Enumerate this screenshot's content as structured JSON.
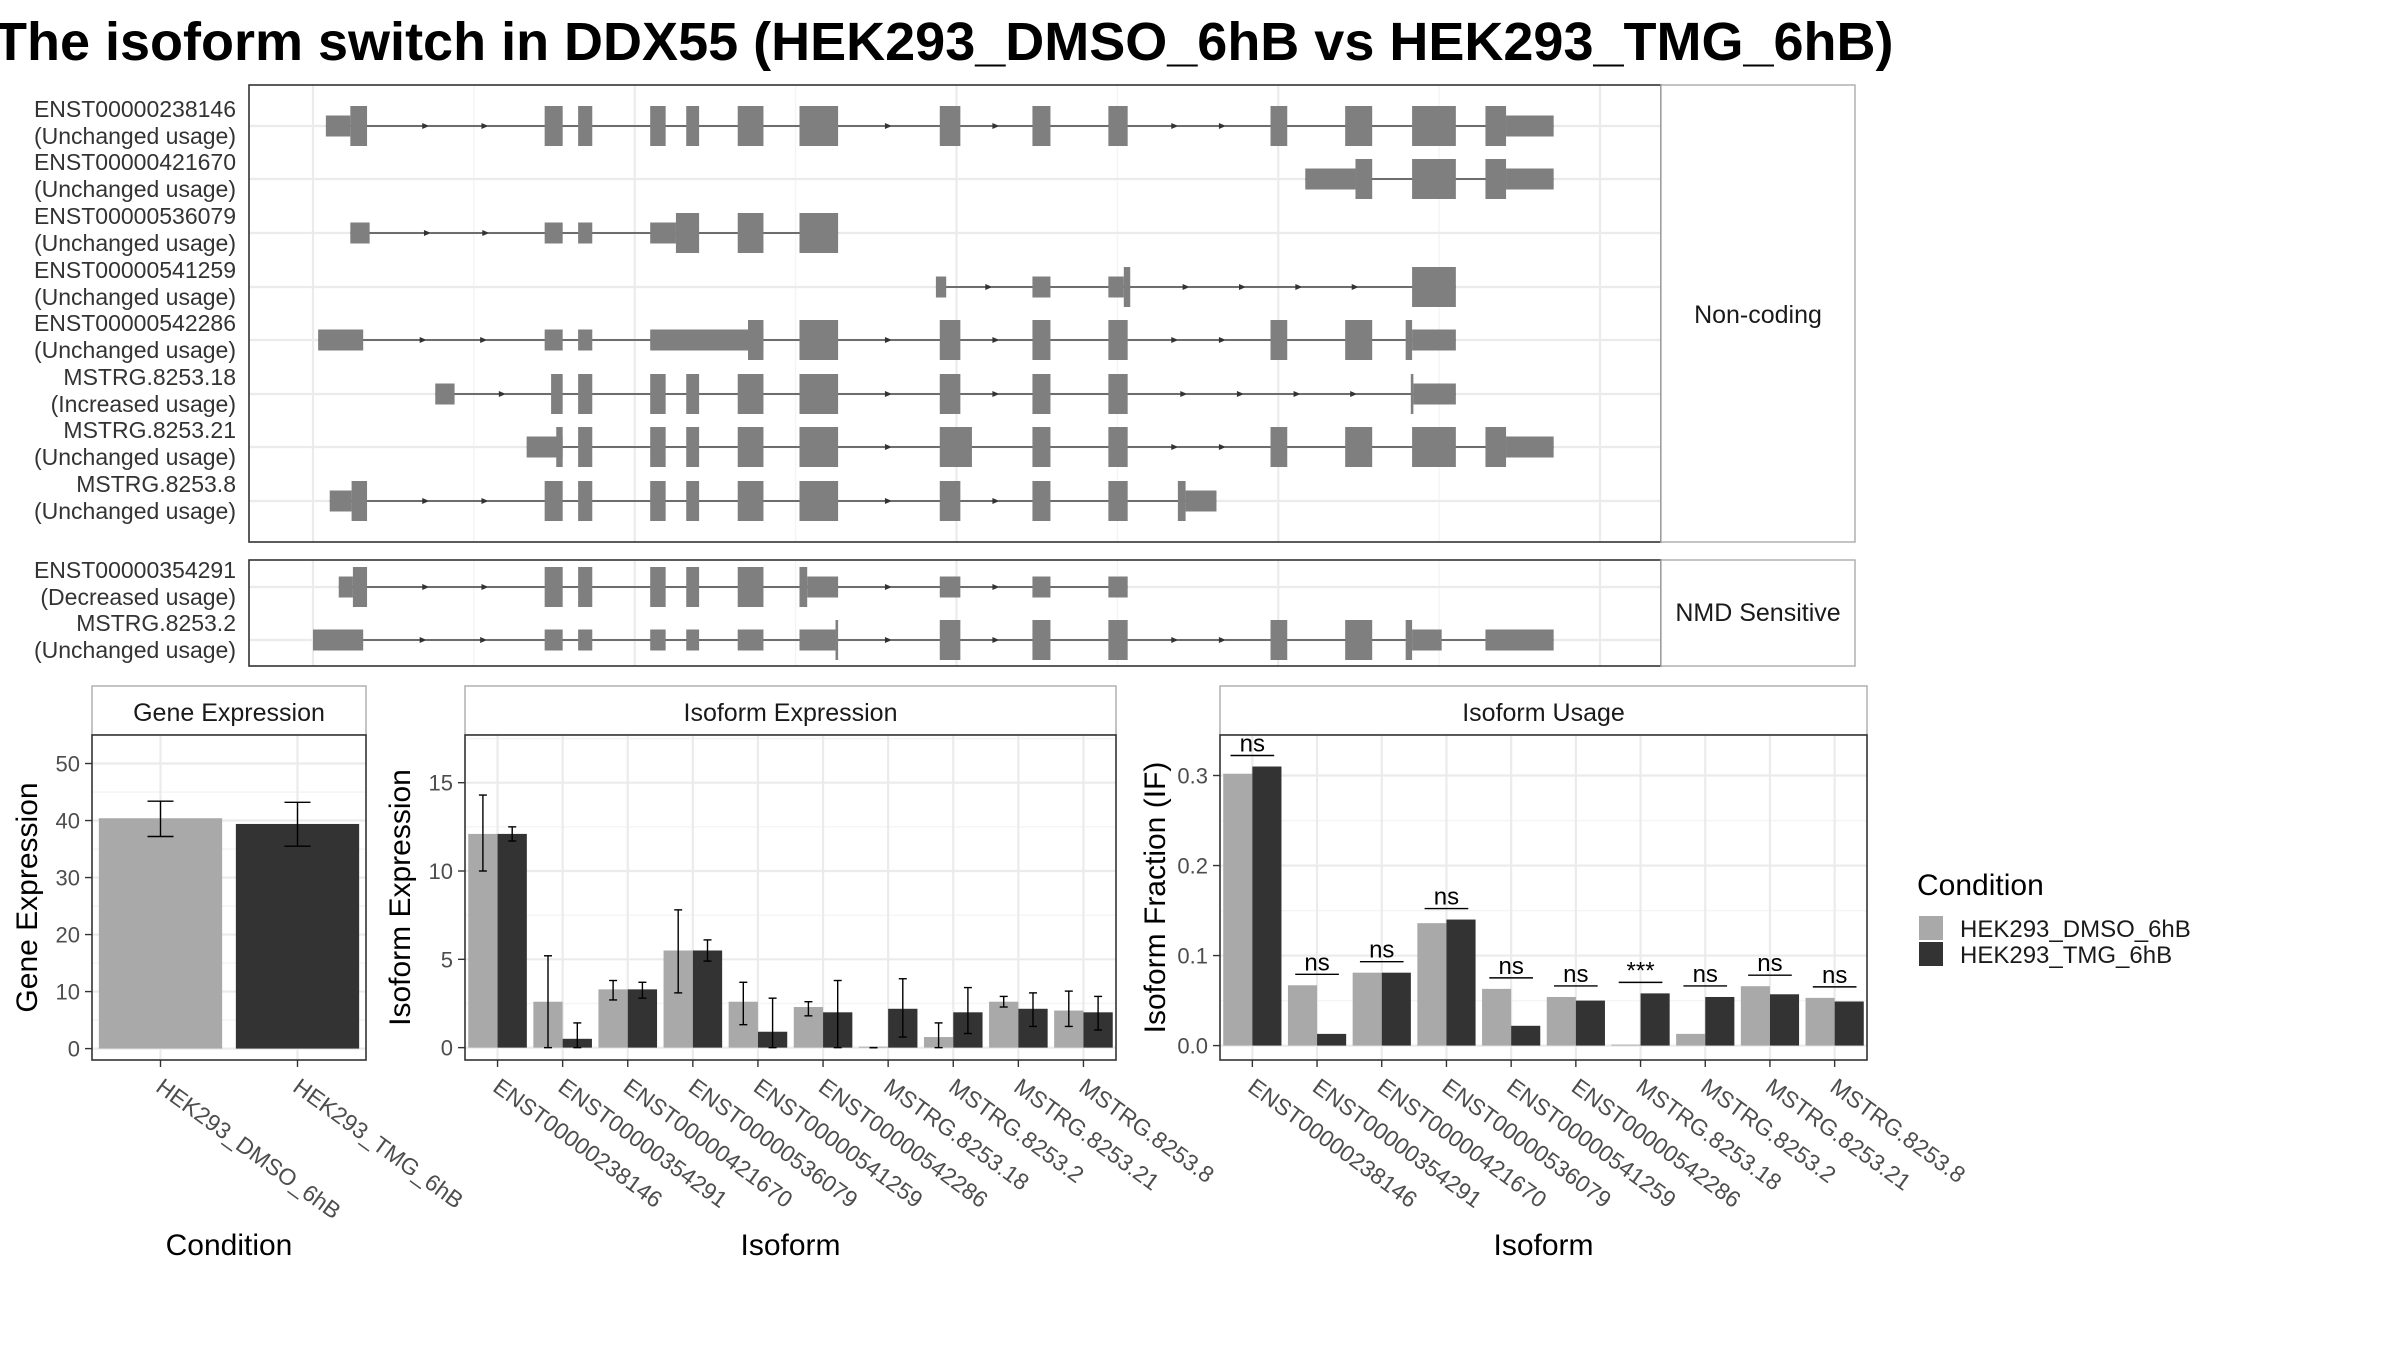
{
  "title": "The isoform switch in DDX55 (HEK293_DMSO_6hB vs HEK293_TMG_6hB)",
  "colors": {
    "exon": "#7f7f7f",
    "dmso": "#a9a9a9",
    "tmg": "#333333"
  },
  "structure": {
    "genomic_range": [
      0,
      100
    ],
    "facets": [
      {
        "label": "Non-coding",
        "transcripts": [
          {
            "id": "ENST00000238146",
            "usage": "(Unchanged usage)",
            "exons": [
              [
                1.0,
                2.9,
                "s"
              ],
              [
                2.9,
                4.2,
                "t"
              ],
              [
                18.0,
                19.4,
                "t"
              ],
              [
                20.6,
                21.7,
                "t"
              ],
              [
                26.2,
                27.4,
                "t"
              ],
              [
                29.0,
                30.0,
                "t"
              ],
              [
                33.0,
                35.0,
                "t"
              ],
              [
                37.8,
                40.8,
                "t"
              ],
              [
                48.7,
                50.3,
                "t"
              ],
              [
                55.9,
                57.3,
                "t"
              ],
              [
                61.8,
                63.3,
                "t"
              ],
              [
                74.4,
                75.7,
                "t"
              ],
              [
                80.2,
                82.3,
                "t"
              ],
              [
                85.4,
                88.8,
                "t"
              ],
              [
                91.1,
                92.7,
                "t"
              ],
              [
                92.7,
                96.4,
                "s"
              ]
            ]
          },
          {
            "id": "ENST00000421670",
            "usage": "(Unchanged usage)",
            "exons": [
              [
                77.1,
                81.0,
                "s"
              ],
              [
                81.0,
                82.3,
                "t"
              ],
              [
                85.4,
                88.8,
                "t"
              ],
              [
                91.1,
                92.7,
                "t"
              ],
              [
                92.7,
                96.4,
                "s"
              ]
            ]
          },
          {
            "id": "ENST00000536079",
            "usage": "(Unchanged usage)",
            "exons": [
              [
                2.9,
                4.4,
                "s"
              ],
              [
                18.0,
                19.4,
                "s"
              ],
              [
                20.6,
                21.7,
                "s"
              ],
              [
                26.2,
                28.2,
                "s"
              ],
              [
                28.2,
                30.0,
                "t"
              ],
              [
                33.0,
                35.0,
                "t"
              ],
              [
                37.8,
                40.8,
                "t"
              ]
            ]
          },
          {
            "id": "ENST00000541259",
            "usage": "(Unchanged usage)",
            "exons": [
              [
                48.4,
                49.2,
                "s"
              ],
              [
                55.9,
                57.3,
                "s"
              ],
              [
                61.8,
                63.0,
                "s"
              ],
              [
                63.0,
                63.5,
                "t"
              ],
              [
                85.4,
                88.8,
                "t"
              ]
            ]
          },
          {
            "id": "ENST00000542286",
            "usage": "(Unchanged usage)",
            "exons": [
              [
                0.4,
                3.9,
                "s"
              ],
              [
                18.0,
                19.4,
                "s"
              ],
              [
                20.6,
                21.7,
                "s"
              ],
              [
                26.2,
                35.0,
                "s"
              ],
              [
                33.8,
                35.0,
                "t"
              ],
              [
                37.8,
                40.8,
                "t"
              ],
              [
                48.7,
                50.3,
                "t"
              ],
              [
                55.9,
                57.3,
                "t"
              ],
              [
                61.8,
                63.3,
                "t"
              ],
              [
                74.4,
                75.7,
                "t"
              ],
              [
                80.2,
                82.3,
                "t"
              ],
              [
                84.9,
                85.4,
                "t"
              ],
              [
                85.4,
                88.8,
                "s"
              ]
            ]
          },
          {
            "id": "MSTRG.8253.18",
            "usage": "(Increased usage)",
            "exons": [
              [
                9.5,
                11.0,
                "s"
              ],
              [
                18.5,
                19.4,
                "t"
              ],
              [
                20.6,
                21.7,
                "t"
              ],
              [
                26.2,
                27.4,
                "t"
              ],
              [
                29.0,
                30.0,
                "t"
              ],
              [
                33.0,
                35.0,
                "t"
              ],
              [
                37.8,
                40.8,
                "t"
              ],
              [
                48.7,
                50.3,
                "t"
              ],
              [
                55.9,
                57.3,
                "t"
              ],
              [
                61.8,
                63.3,
                "t"
              ],
              [
                85.3,
                85.5,
                "t"
              ],
              [
                85.5,
                88.8,
                "s"
              ]
            ]
          },
          {
            "id": "MSTRG.8253.21",
            "usage": "(Unchanged usage)",
            "exons": [
              [
                16.6,
                19.4,
                "s"
              ],
              [
                18.9,
                19.4,
                "t"
              ],
              [
                20.6,
                21.7,
                "t"
              ],
              [
                26.2,
                27.4,
                "t"
              ],
              [
                29.0,
                30.0,
                "t"
              ],
              [
                33.0,
                35.0,
                "t"
              ],
              [
                37.8,
                40.8,
                "t"
              ],
              [
                48.7,
                51.2,
                "t"
              ],
              [
                55.9,
                57.3,
                "t"
              ],
              [
                61.8,
                63.3,
                "t"
              ],
              [
                74.4,
                75.7,
                "t"
              ],
              [
                80.2,
                82.3,
                "t"
              ],
              [
                85.4,
                88.8,
                "t"
              ],
              [
                91.1,
                92.7,
                "t"
              ],
              [
                92.7,
                96.4,
                "s"
              ]
            ]
          },
          {
            "id": "MSTRG.8253.8",
            "usage": "(Unchanged usage)",
            "exons": [
              [
                1.3,
                3.0,
                "s"
              ],
              [
                3.0,
                4.2,
                "t"
              ],
              [
                18.0,
                19.4,
                "t"
              ],
              [
                20.6,
                21.7,
                "t"
              ],
              [
                26.2,
                27.4,
                "t"
              ],
              [
                29.0,
                30.0,
                "t"
              ],
              [
                33.0,
                35.0,
                "t"
              ],
              [
                37.8,
                40.8,
                "t"
              ],
              [
                48.7,
                50.3,
                "t"
              ],
              [
                55.9,
                57.3,
                "t"
              ],
              [
                61.8,
                63.3,
                "t"
              ],
              [
                67.2,
                67.8,
                "t"
              ],
              [
                67.8,
                70.2,
                "s"
              ]
            ]
          }
        ]
      },
      {
        "label": "NMD Sensitive",
        "transcripts": [
          {
            "id": "ENST00000354291",
            "usage": "(Decreased usage)",
            "exons": [
              [
                2.0,
                3.1,
                "s"
              ],
              [
                3.1,
                4.2,
                "t"
              ],
              [
                18.0,
                19.4,
                "t"
              ],
              [
                20.6,
                21.7,
                "t"
              ],
              [
                26.2,
                27.4,
                "t"
              ],
              [
                29.0,
                30.0,
                "t"
              ],
              [
                33.0,
                35.0,
                "t"
              ],
              [
                37.8,
                38.4,
                "t"
              ],
              [
                38.4,
                40.8,
                "s"
              ],
              [
                48.7,
                50.3,
                "s"
              ],
              [
                55.9,
                57.3,
                "s"
              ],
              [
                61.8,
                63.3,
                "s"
              ]
            ]
          },
          {
            "id": "MSTRG.8253.2",
            "usage": "(Unchanged usage)",
            "exons": [
              [
                0.0,
                3.9,
                "s"
              ],
              [
                18.0,
                19.4,
                "s"
              ],
              [
                20.6,
                21.7,
                "s"
              ],
              [
                26.2,
                27.4,
                "s"
              ],
              [
                29.0,
                30.0,
                "s"
              ],
              [
                33.0,
                35.0,
                "s"
              ],
              [
                37.8,
                40.6,
                "s"
              ],
              [
                40.6,
                40.8,
                "t"
              ],
              [
                48.7,
                50.3,
                "t"
              ],
              [
                55.9,
                57.3,
                "t"
              ],
              [
                61.8,
                63.3,
                "t"
              ],
              [
                74.4,
                75.7,
                "t"
              ],
              [
                80.2,
                82.3,
                "t"
              ],
              [
                84.9,
                85.4,
                "t"
              ],
              [
                85.4,
                87.7,
                "s"
              ],
              [
                91.1,
                96.4,
                "s"
              ]
            ]
          }
        ]
      }
    ]
  },
  "chart_data": [
    {
      "type": "bar",
      "title": "Gene Expression",
      "xlabel": "Condition",
      "ylabel": "Gene Expression",
      "ylim": [
        -2,
        55
      ],
      "yticks": [
        0,
        10,
        20,
        30,
        40,
        50
      ],
      "categories": [
        "HEK293_DMSO_6hB",
        "HEK293_TMG_6hB"
      ],
      "values": [
        40.4,
        39.4
      ],
      "errors": [
        [
          37.2,
          43.4
        ],
        [
          35.5,
          43.2
        ]
      ]
    },
    {
      "type": "bar",
      "title": "Isoform Expression",
      "xlabel": "Isoform",
      "ylabel": "Isoform Expression",
      "ylim": [
        -0.7,
        17.7
      ],
      "yticks": [
        0,
        5,
        10,
        15
      ],
      "categories": [
        "ENST00000238146",
        "ENST00000354291",
        "ENST00000421670",
        "ENST00000536079",
        "ENST00000541259",
        "ENST00000542286",
        "MSTRG.8253.18",
        "MSTRG.8253.2",
        "MSTRG.8253.21",
        "MSTRG.8253.8"
      ],
      "series": [
        {
          "name": "HEK293_DMSO_6hB",
          "values": [
            12.1,
            2.6,
            3.3,
            5.5,
            2.6,
            2.3,
            0.0,
            0.6,
            2.6,
            2.1
          ],
          "errors": [
            [
              10.0,
              14.3
            ],
            [
              0.0,
              5.2
            ],
            [
              2.7,
              3.8
            ],
            [
              3.1,
              7.8
            ],
            [
              1.3,
              3.7
            ],
            [
              1.8,
              2.6
            ],
            [
              0.0,
              0.0
            ],
            [
              0.0,
              1.4
            ],
            [
              2.3,
              2.9
            ],
            [
              1.2,
              3.2
            ]
          ]
        },
        {
          "name": "HEK293_TMG_6hB",
          "values": [
            12.1,
            0.5,
            3.3,
            5.5,
            0.9,
            2.0,
            2.2,
            2.0,
            2.2,
            2.0
          ],
          "errors": [
            [
              11.7,
              12.5
            ],
            [
              0.0,
              1.4
            ],
            [
              2.8,
              3.7
            ],
            [
              4.9,
              6.1
            ],
            [
              0.0,
              2.8
            ],
            [
              0.0,
              3.8
            ],
            [
              0.6,
              3.9
            ],
            [
              0.8,
              3.4
            ],
            [
              1.2,
              3.1
            ],
            [
              1.0,
              2.9
            ]
          ]
        }
      ]
    },
    {
      "type": "bar",
      "title": "Isoform Usage",
      "xlabel": "Isoform",
      "ylabel": "Isoform Fraction (IF)",
      "ylim": [
        -0.016,
        0.345
      ],
      "yticks": [
        "0.0",
        "0.1",
        "0.2",
        "0.3"
      ],
      "categories": [
        "ENST00000238146",
        "ENST00000354291",
        "ENST00000421670",
        "ENST00000536079",
        "ENST00000541259",
        "ENST00000542286",
        "MSTRG.8253.18",
        "MSTRG.8253.2",
        "MSTRG.8253.21",
        "MSTRG.8253.8"
      ],
      "series": [
        {
          "name": "HEK293_DMSO_6hB",
          "values": [
            0.302,
            0.067,
            0.081,
            0.136,
            0.063,
            0.054,
            0.0,
            0.013,
            0.066,
            0.053
          ]
        },
        {
          "name": "HEK293_TMG_6hB",
          "values": [
            0.31,
            0.013,
            0.081,
            0.14,
            0.022,
            0.05,
            0.058,
            0.054,
            0.057,
            0.049
          ]
        }
      ],
      "significance": [
        "ns",
        "ns",
        "ns",
        "ns",
        "ns",
        "ns",
        "***",
        "ns",
        "ns",
        "ns"
      ]
    }
  ],
  "legend": {
    "title": "Condition",
    "entries": [
      "HEK293_DMSO_6hB",
      "HEK293_TMG_6hB"
    ]
  }
}
